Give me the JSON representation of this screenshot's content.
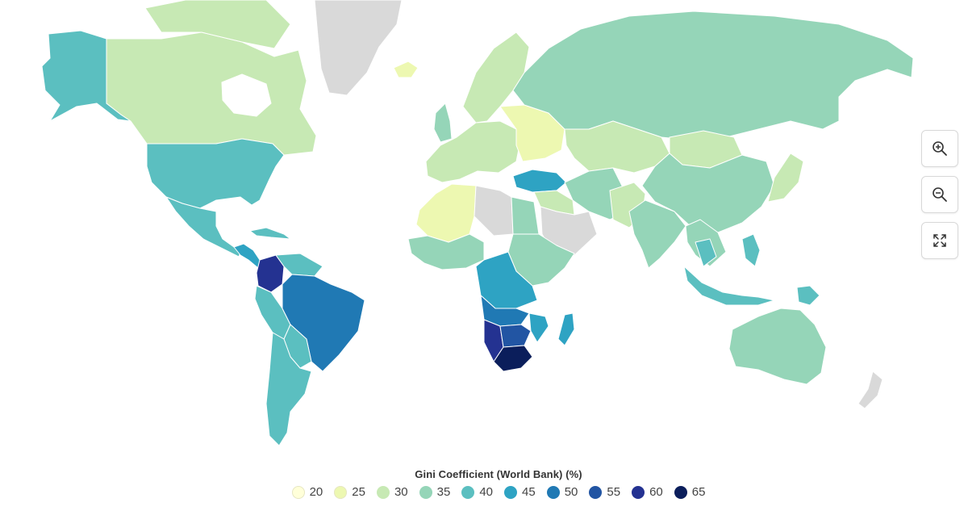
{
  "legend": {
    "title": "Gini Coefficient (World Bank) (%)",
    "items": [
      {
        "label": "20",
        "color": "#ffffd9"
      },
      {
        "label": "25",
        "color": "#edf8b1"
      },
      {
        "label": "30",
        "color": "#c7e9b4"
      },
      {
        "label": "35",
        "color": "#95d5b8"
      },
      {
        "label": "40",
        "color": "#5bbfc0"
      },
      {
        "label": "45",
        "color": "#2ea3c3"
      },
      {
        "label": "50",
        "color": "#2079b4"
      },
      {
        "label": "55",
        "color": "#2255a3"
      },
      {
        "label": "60",
        "color": "#243291"
      },
      {
        "label": "65",
        "color": "#0b1e5b"
      }
    ]
  },
  "controls": [
    {
      "name": "zoom-in",
      "icon": "zoom-in-icon"
    },
    {
      "name": "zoom-out",
      "icon": "zoom-out-icon"
    },
    {
      "name": "fullscreen",
      "icon": "expand-icon"
    }
  ],
  "no_data_color": "#d9d9d9"
}
